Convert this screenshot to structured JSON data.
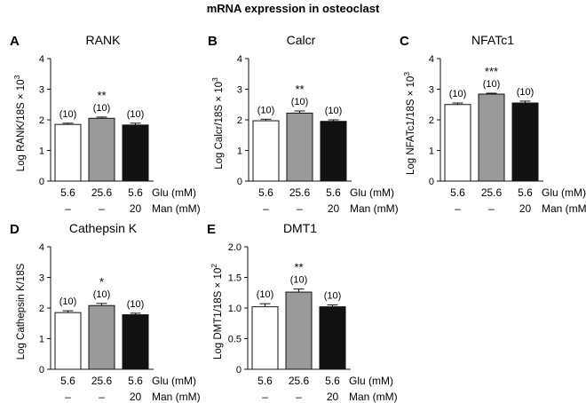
{
  "main_title": "mRNA expression in osteoclast",
  "chart_data": [
    {
      "panel": "A",
      "type": "bar",
      "title": "RANK",
      "ylabel": "Log RANK/18S × 10",
      "ylabel_exp": "3",
      "ylim": [
        0,
        4
      ],
      "yticks": [
        "0",
        "1",
        "2",
        "3",
        "4"
      ],
      "glu": [
        "5.6",
        "25.6",
        "5.6"
      ],
      "man": [
        "–",
        "–",
        "20"
      ],
      "glu_unit": "Glu (mM)",
      "man_unit": "Man (mM)",
      "values": [
        1.85,
        2.05,
        1.83
      ],
      "errors": [
        0.04,
        0.04,
        0.06
      ],
      "n": [
        "(10)",
        "(10)",
        "(10)"
      ],
      "sig": [
        "",
        "**",
        ""
      ],
      "colors": [
        "#ffffff",
        "#9a9a9a",
        "#111111"
      ]
    },
    {
      "panel": "B",
      "type": "bar",
      "title": "Calcr",
      "ylabel": "Log Calcr/18S × 10",
      "ylabel_exp": "3",
      "ylim": [
        0,
        4
      ],
      "yticks": [
        "0",
        "1",
        "2",
        "3",
        "4"
      ],
      "glu": [
        "5.6",
        "25.6",
        "5.6"
      ],
      "man": [
        "–",
        "–",
        "20"
      ],
      "glu_unit": "Glu (mM)",
      "man_unit": "Man (mM)",
      "values": [
        1.97,
        2.22,
        1.95
      ],
      "errors": [
        0.05,
        0.07,
        0.05
      ],
      "n": [
        "(10)",
        "(10)",
        "(10)"
      ],
      "sig": [
        "",
        "**",
        ""
      ],
      "colors": [
        "#ffffff",
        "#9a9a9a",
        "#111111"
      ]
    },
    {
      "panel": "C",
      "type": "bar",
      "title": "NFATc1",
      "ylabel": "Log NFATc1/18S × 10",
      "ylabel_exp": "3",
      "ylim": [
        0,
        4
      ],
      "yticks": [
        "0",
        "1",
        "2",
        "3",
        "4"
      ],
      "glu": [
        "5.6",
        "25.6",
        "5.6"
      ],
      "man": [
        "–",
        "–",
        "20"
      ],
      "glu_unit": "Glu (mM)",
      "man_unit": "Man (mM)",
      "values": [
        2.5,
        2.84,
        2.55
      ],
      "errors": [
        0.05,
        0.03,
        0.06
      ],
      "n": [
        "(10)",
        "(10)",
        "(10)"
      ],
      "sig": [
        "",
        "***",
        ""
      ],
      "colors": [
        "#ffffff",
        "#9a9a9a",
        "#111111"
      ]
    },
    {
      "panel": "D",
      "type": "bar",
      "title": "Cathepsin K",
      "ylabel": "Log Cathepsin K/18S",
      "ylabel_exp": "",
      "ylim": [
        0,
        4
      ],
      "yticks": [
        "0",
        "1",
        "2",
        "3",
        "4"
      ],
      "glu": [
        "5.6",
        "25.6",
        "5.6"
      ],
      "man": [
        "–",
        "–",
        "20"
      ],
      "glu_unit": "Glu (mM)",
      "man_unit": "Man (mM)",
      "values": [
        1.85,
        2.08,
        1.78
      ],
      "errors": [
        0.06,
        0.07,
        0.05
      ],
      "n": [
        "(10)",
        "(10)",
        "(10)"
      ],
      "sig": [
        "",
        "*",
        ""
      ],
      "colors": [
        "#ffffff",
        "#9a9a9a",
        "#111111"
      ]
    },
    {
      "panel": "E",
      "type": "bar",
      "title": "DMT1",
      "ylabel": "Log DMT1/18S × 10",
      "ylabel_exp": "2",
      "ylim": [
        0,
        2
      ],
      "yticks": [
        "0",
        "0.5",
        "1.0",
        "1.5",
        "2.0"
      ],
      "glu": [
        "5.6",
        "25.6",
        "5.6"
      ],
      "man": [
        "–",
        "–",
        "20"
      ],
      "glu_unit": "Glu (mM)",
      "man_unit": "Man (mM)",
      "values": [
        1.02,
        1.26,
        1.02
      ],
      "errors": [
        0.05,
        0.05,
        0.03
      ],
      "n": [
        "(10)",
        "(10)",
        "(10)"
      ],
      "sig": [
        "",
        "**",
        ""
      ],
      "colors": [
        "#ffffff",
        "#9a9a9a",
        "#111111"
      ]
    }
  ]
}
